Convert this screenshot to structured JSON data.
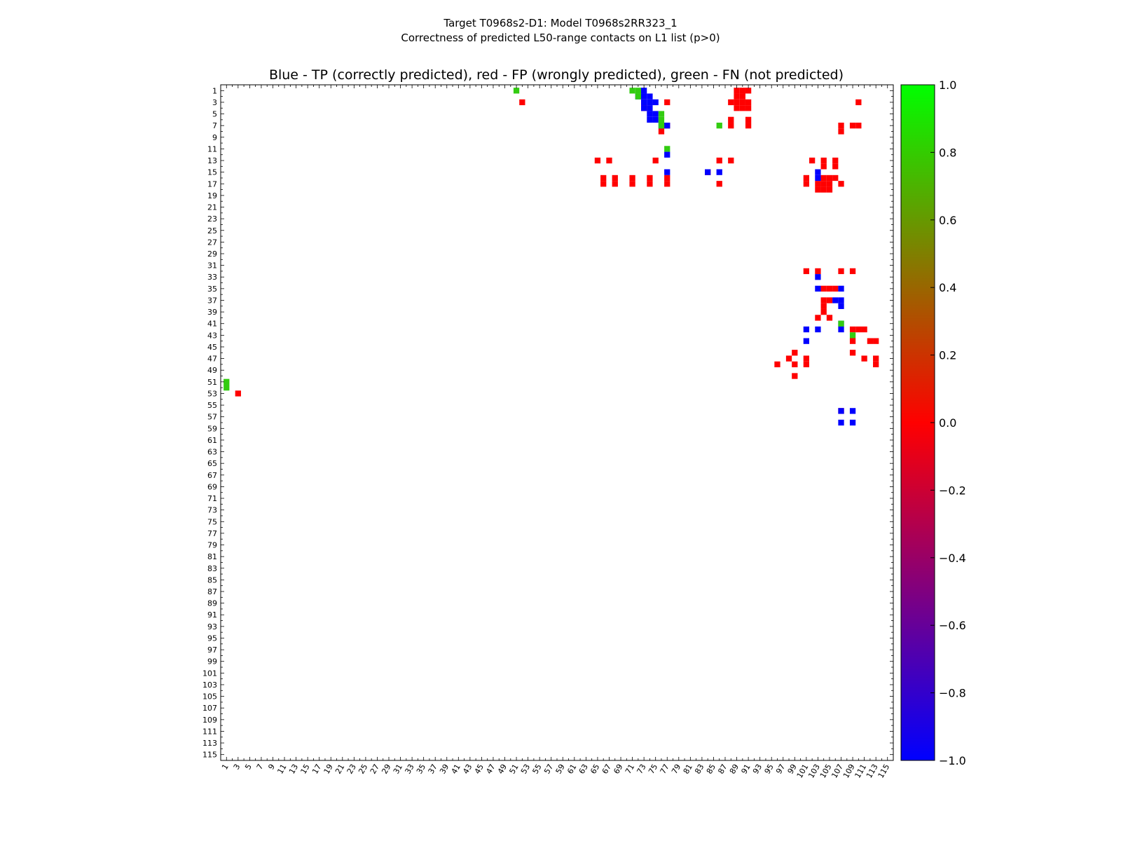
{
  "chart_data": {
    "type": "heatmap",
    "title": "Target T0968s2-D1: Model T0968s2RR323_1",
    "subtitle": "Correctness of predicted L50-range contacts on L1 list (p>0)",
    "axes_title": "Blue - TP (correctly predicted), red - FP (wrongly predicted), green - FN (not predicted)",
    "xlabel": "",
    "ylabel": "",
    "n_residues": 115,
    "x_ticks": [
      1,
      3,
      5,
      7,
      9,
      11,
      13,
      15,
      17,
      19,
      21,
      23,
      25,
      27,
      29,
      31,
      33,
      35,
      37,
      39,
      41,
      43,
      45,
      47,
      49,
      51,
      53,
      55,
      57,
      59,
      61,
      63,
      65,
      67,
      69,
      71,
      73,
      75,
      77,
      79,
      81,
      83,
      85,
      87,
      89,
      91,
      93,
      95,
      97,
      99,
      101,
      103,
      105,
      107,
      109,
      111,
      113,
      115
    ],
    "y_ticks": [
      1,
      3,
      5,
      7,
      9,
      11,
      13,
      15,
      17,
      19,
      21,
      23,
      25,
      27,
      29,
      31,
      33,
      35,
      37,
      39,
      41,
      43,
      45,
      47,
      49,
      51,
      53,
      55,
      57,
      59,
      61,
      63,
      65,
      67,
      69,
      71,
      73,
      75,
      77,
      79,
      81,
      83,
      85,
      87,
      89,
      91,
      93,
      95,
      97,
      99,
      101,
      103,
      105,
      107,
      109,
      111,
      113,
      115
    ],
    "colorbar": {
      "range": [
        -1.0,
        1.0
      ],
      "ticks": [
        "1.0",
        "0.8",
        "0.6",
        "0.4",
        "0.2",
        "0.0",
        "−0.2",
        "−0.4",
        "−0.6",
        "−0.8",
        "−1.0"
      ],
      "colors": [
        "#00ff00",
        "#ff0000",
        "#0000ff"
      ]
    },
    "colors": {
      "TP": "#0000ff",
      "FP": "#ff0000",
      "FN": "#33cc11"
    },
    "legend": {
      "TP": "correctly predicted",
      "FP": "wrongly predicted",
      "FN": "not predicted"
    },
    "contacts_TP": [
      [
        1,
        73
      ],
      [
        2,
        72
      ],
      [
        2,
        73
      ],
      [
        2,
        74
      ],
      [
        3,
        73
      ],
      [
        3,
        74
      ],
      [
        3,
        75
      ],
      [
        4,
        73
      ],
      [
        4,
        74
      ],
      [
        5,
        74
      ],
      [
        5,
        75
      ],
      [
        6,
        74
      ],
      [
        6,
        75
      ],
      [
        7,
        76
      ],
      [
        7,
        77
      ],
      [
        12,
        77
      ],
      [
        15,
        77
      ],
      [
        15,
        84
      ],
      [
        15,
        86
      ],
      [
        15,
        103
      ],
      [
        16,
        103
      ],
      [
        33,
        103
      ],
      [
        35,
        103
      ],
      [
        35,
        107
      ],
      [
        37,
        106
      ],
      [
        37,
        107
      ],
      [
        38,
        107
      ],
      [
        41,
        107
      ],
      [
        42,
        101
      ],
      [
        42,
        103
      ],
      [
        42,
        107
      ],
      [
        44,
        101
      ],
      [
        56,
        107
      ],
      [
        56,
        109
      ],
      [
        58,
        107
      ],
      [
        58,
        109
      ]
    ],
    "contacts_FP": [
      [
        1,
        89
      ],
      [
        1,
        90
      ],
      [
        1,
        91
      ],
      [
        2,
        89
      ],
      [
        2,
        90
      ],
      [
        3,
        52
      ],
      [
        3,
        77
      ],
      [
        3,
        88
      ],
      [
        3,
        89
      ],
      [
        3,
        90
      ],
      [
        3,
        91
      ],
      [
        3,
        110
      ],
      [
        4,
        73
      ],
      [
        4,
        89
      ],
      [
        4,
        90
      ],
      [
        4,
        91
      ],
      [
        6,
        88
      ],
      [
        6,
        91
      ],
      [
        7,
        88
      ],
      [
        7,
        91
      ],
      [
        7,
        77
      ],
      [
        7,
        107
      ],
      [
        7,
        109
      ],
      [
        7,
        110
      ],
      [
        8,
        76
      ],
      [
        8,
        107
      ],
      [
        13,
        65
      ],
      [
        13,
        67
      ],
      [
        13,
        75
      ],
      [
        13,
        86
      ],
      [
        13,
        88
      ],
      [
        13,
        102
      ],
      [
        13,
        104
      ],
      [
        13,
        106
      ],
      [
        14,
        104
      ],
      [
        14,
        106
      ],
      [
        15,
        84
      ],
      [
        16,
        66
      ],
      [
        16,
        68
      ],
      [
        16,
        71
      ],
      [
        16,
        74
      ],
      [
        16,
        77
      ],
      [
        16,
        101
      ],
      [
        16,
        104
      ],
      [
        16,
        105
      ],
      [
        16,
        106
      ],
      [
        17,
        66
      ],
      [
        17,
        68
      ],
      [
        17,
        71
      ],
      [
        17,
        74
      ],
      [
        17,
        77
      ],
      [
        17,
        86
      ],
      [
        17,
        101
      ],
      [
        17,
        103
      ],
      [
        17,
        104
      ],
      [
        17,
        105
      ],
      [
        17,
        107
      ],
      [
        18,
        103
      ],
      [
        18,
        104
      ],
      [
        18,
        105
      ],
      [
        32,
        101
      ],
      [
        32,
        103
      ],
      [
        32,
        107
      ],
      [
        32,
        109
      ],
      [
        35,
        104
      ],
      [
        35,
        105
      ],
      [
        35,
        106
      ],
      [
        37,
        104
      ],
      [
        37,
        105
      ],
      [
        38,
        104
      ],
      [
        39,
        104
      ],
      [
        40,
        103
      ],
      [
        40,
        105
      ],
      [
        42,
        111
      ],
      [
        42,
        109
      ],
      [
        42,
        110
      ],
      [
        44,
        109
      ],
      [
        44,
        112
      ],
      [
        44,
        113
      ],
      [
        46,
        99
      ],
      [
        46,
        109
      ],
      [
        47,
        98
      ],
      [
        47,
        101
      ],
      [
        47,
        111
      ],
      [
        47,
        113
      ],
      [
        48,
        96
      ],
      [
        48,
        99
      ],
      [
        48,
        101
      ],
      [
        48,
        113
      ],
      [
        50,
        99
      ],
      [
        53,
        3
      ],
      [
        56,
        107
      ]
    ],
    "contacts_FN": [
      [
        1,
        51
      ],
      [
        1,
        71
      ],
      [
        1,
        72
      ],
      [
        2,
        72
      ],
      [
        5,
        76
      ],
      [
        6,
        76
      ],
      [
        7,
        76
      ],
      [
        7,
        86
      ],
      [
        11,
        77
      ],
      [
        41,
        107
      ],
      [
        43,
        109
      ],
      [
        51,
        1
      ],
      [
        52,
        1
      ]
    ]
  }
}
